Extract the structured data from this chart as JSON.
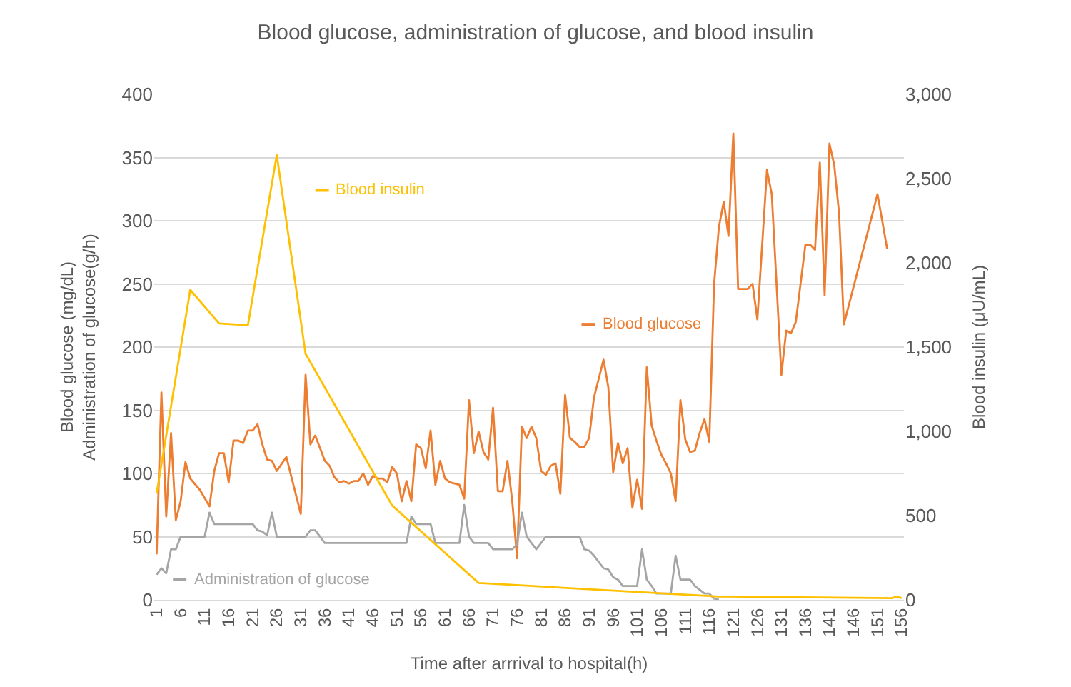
{
  "chart_data": {
    "type": "line",
    "title": "Blood glucose, administration of glucose, and blood insulin",
    "xlabel": "Time after arrrival to hospital(h)",
    "ylabel": "Blood glucose (mg/dL)\nAdministration of glucose(g/h)",
    "y2label": "Blood insulin (μU/mL)",
    "xlim": [
      0.5,
      156.5
    ],
    "xticks": [
      1,
      6,
      11,
      16,
      21,
      26,
      31,
      36,
      41,
      46,
      51,
      56,
      61,
      66,
      71,
      76,
      81,
      86,
      91,
      96,
      101,
      106,
      111,
      116,
      121,
      126,
      131,
      136,
      141,
      146,
      151,
      156
    ],
    "ylim": [
      0,
      400
    ],
    "yticks": [
      0,
      50,
      100,
      150,
      200,
      250,
      300,
      350,
      400
    ],
    "y2lim": [
      0,
      3000
    ],
    "y2ticks": [
      0,
      500,
      {
        "value": 1000,
        "label": "1,000"
      },
      {
        "value": 1500,
        "label": "1,500"
      },
      {
        "value": 2000,
        "label": "2,000"
      },
      {
        "value": 2500,
        "label": "2,500"
      },
      {
        "value": 3000,
        "label": "3,000"
      }
    ],
    "grid": "y",
    "legend": "bottom left",
    "marker": "none",
    "line_style": "solid",
    "series": [
      {
        "name": "Blood glucose",
        "color": "#ed7d31",
        "x": [
          1,
          2,
          3,
          4,
          5,
          6,
          7,
          8,
          10,
          12,
          13,
          14,
          15,
          16,
          17,
          18,
          19,
          20,
          21,
          22,
          23,
          24,
          25,
          26,
          28,
          31,
          32,
          33,
          34,
          35,
          36,
          37,
          38,
          39,
          40,
          41,
          42,
          43,
          44,
          45,
          46,
          47,
          48,
          49,
          50,
          51,
          52,
          53,
          54,
          55,
          56,
          57,
          58,
          59,
          60,
          61,
          62,
          63,
          64,
          65,
          66,
          67,
          68,
          69,
          70,
          71,
          72,
          73,
          74,
          75,
          76,
          77,
          78,
          79,
          80,
          81,
          82,
          83,
          84,
          85,
          86,
          87,
          88,
          89,
          90,
          91,
          92,
          93,
          94,
          95,
          96,
          97,
          98,
          99,
          100,
          101,
          102,
          103,
          104,
          105,
          106,
          107,
          108,
          109,
          110,
          111,
          112,
          113,
          114,
          115,
          116,
          117,
          118,
          119,
          120,
          121,
          122,
          123,
          124,
          125,
          126,
          128,
          129,
          131,
          132,
          133,
          134,
          136,
          137,
          138,
          139,
          140,
          141,
          142,
          143,
          144,
          151,
          153
        ],
        "values": [
          36,
          164,
          66,
          132,
          63,
          78,
          109,
          96,
          87,
          74,
          102,
          116,
          116,
          93,
          126,
          126,
          124,
          134,
          134,
          139,
          123,
          111,
          110,
          102,
          113,
          68,
          178,
          123,
          130,
          120,
          110,
          106,
          97,
          93,
          94,
          92,
          94,
          94,
          100,
          91,
          98,
          96,
          96,
          93,
          105,
          100,
          78,
          94,
          78,
          123,
          120,
          104,
          134,
          91,
          110,
          96,
          93,
          92,
          91,
          80,
          158,
          116,
          133,
          117,
          111,
          152,
          86,
          86,
          110,
          78,
          33,
          137,
          128,
          137,
          128,
          102,
          99,
          106,
          108,
          84,
          162,
          128,
          125,
          121,
          121,
          128,
          160,
          175,
          190,
          168,
          101,
          124,
          108,
          120,
          73,
          95,
          72,
          184,
          138,
          126,
          115,
          108,
          100,
          78,
          158,
          127,
          117,
          118,
          132,
          143,
          125,
          250,
          295,
          315,
          288,
          369,
          246,
          246,
          246,
          250,
          222,
          340,
          321,
          178,
          213,
          211,
          220,
          281,
          281,
          277,
          346,
          241,
          361,
          344,
          306,
          218,
          321,
          278
        ]
      },
      {
        "name": "Administration of glucose",
        "color": "#a5a5a5",
        "x": [
          1,
          2,
          3,
          4,
          5,
          6,
          11,
          12,
          13,
          21,
          22,
          23,
          24,
          25,
          26,
          32,
          33,
          34,
          36,
          53,
          54,
          55,
          58,
          59,
          64,
          65,
          66,
          67,
          70,
          71,
          75,
          76,
          77,
          78,
          80,
          82,
          89,
          90,
          91,
          92,
          94,
          95,
          96,
          97,
          98,
          101,
          102,
          103,
          104,
          105,
          108,
          109,
          110,
          112,
          113,
          115,
          116,
          117,
          118
        ],
        "values": [
          20,
          25,
          21,
          40,
          40,
          50,
          50,
          69,
          60,
          60,
          55,
          54,
          51,
          69,
          50,
          50,
          55,
          55,
          45,
          45,
          66,
          60,
          60,
          45,
          45,
          75,
          50,
          45,
          45,
          40,
          40,
          44,
          69,
          50,
          40,
          50,
          50,
          40,
          39,
          35,
          25,
          24,
          18,
          16,
          11,
          11,
          40,
          16,
          11,
          5,
          5,
          35,
          16,
          16,
          11,
          5,
          5,
          1,
          0
        ]
      },
      {
        "name": "Blood insulin",
        "color": "#ffc000",
        "axis": "y2",
        "x": [
          1,
          8,
          14,
          20,
          26,
          32,
          50,
          68,
          118,
          154,
          155,
          156
        ],
        "values": [
          630,
          1840,
          1640,
          1630,
          2640,
          1460,
          560,
          100,
          20,
          10,
          20,
          10
        ]
      }
    ]
  }
}
